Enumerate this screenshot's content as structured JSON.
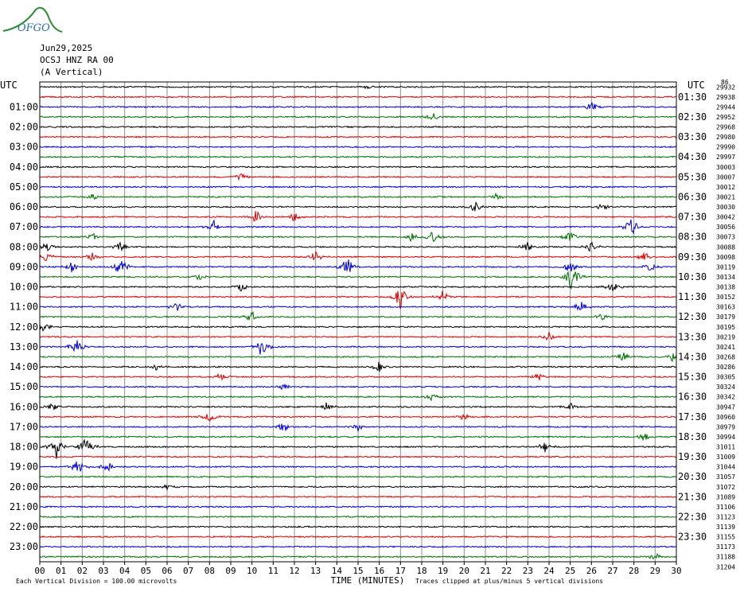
{
  "logo": {
    "text": "OFGO"
  },
  "header": {
    "date": "Jun29,2025",
    "station": "OCSJ HNZ RA 00",
    "component": "(A Vertical)"
  },
  "colors": {
    "trace_cycle": [
      "#000000",
      "#e00000",
      "#0000e0",
      "#007000"
    ],
    "grid": "#909090"
  },
  "chart_data": {
    "type": "line",
    "title": "",
    "xlabel": "TIME (MINUTES)",
    "ylabel": "",
    "x_ticks": [
      "00",
      "01",
      "02",
      "03",
      "04",
      "05",
      "06",
      "07",
      "08",
      "09",
      "10",
      "11",
      "12",
      "13",
      "14",
      "15",
      "16",
      "17",
      "18",
      "19",
      "20",
      "21",
      "22",
      "23",
      "24",
      "25",
      "26",
      "27",
      "28",
      "29",
      "30"
    ],
    "xlim": [
      0,
      30
    ],
    "left_axis_title": "UTC",
    "right_axis_title": "UTC",
    "left_hour_labels": [
      "01:00",
      "02:00",
      "03:00",
      "04:00",
      "05:00",
      "06:00",
      "07:00",
      "08:00",
      "09:00",
      "10:00",
      "11:00",
      "12:00",
      "13:00",
      "14:00",
      "15:00",
      "16:00",
      "17:00",
      "18:00",
      "19:00",
      "20:00",
      "21:00",
      "22:00",
      "23:00"
    ],
    "right_hour_labels": [
      "01:30",
      "02:30",
      "03:30",
      "04:30",
      "05:30",
      "06:30",
      "07:30",
      "08:30",
      "09:30",
      "10:30",
      "11:30",
      "12:30",
      "13:30",
      "14:30",
      "15:30",
      "16:30",
      "17:30",
      "18:30",
      "19:30",
      "20:30",
      "21:30",
      "22:30",
      "23:30"
    ],
    "trace_counts_top_label": "86",
    "trace_counts": [
      "29932",
      "29938",
      "29944",
      "29952",
      "29968",
      "29980",
      "29990",
      "29997",
      "30003",
      "30007",
      "30012",
      "30021",
      "30030",
      "30042",
      "30056",
      "30073",
      "30088",
      "30098",
      "30119",
      "30134",
      "30138",
      "30152",
      "30163",
      "30179",
      "30195",
      "30219",
      "30241",
      "30268",
      "30286",
      "30305",
      "30324",
      "30342",
      "30947",
      "30960",
      "30979",
      "30994",
      "31011",
      "31009",
      "31044",
      "31057",
      "31072",
      "31089",
      "31106",
      "31123",
      "31139",
      "31155",
      "31173",
      "31188",
      "31204"
    ],
    "events": [
      {
        "row": 0,
        "minute": 15.5,
        "amp": 4
      },
      {
        "row": 2,
        "minute": 26.0,
        "amp": 6
      },
      {
        "row": 3,
        "minute": 18.5,
        "amp": 6
      },
      {
        "row": 9,
        "minute": 9.5,
        "amp": 6
      },
      {
        "row": 11,
        "minute": 2.5,
        "amp": 6
      },
      {
        "row": 11,
        "minute": 21.5,
        "amp": 5
      },
      {
        "row": 12,
        "minute": 20.5,
        "amp": 8
      },
      {
        "row": 12,
        "minute": 26.5,
        "amp": 5
      },
      {
        "row": 13,
        "minute": 10.2,
        "amp": 10
      },
      {
        "row": 13,
        "minute": 12.0,
        "amp": 6
      },
      {
        "row": 14,
        "minute": 8.2,
        "amp": 8
      },
      {
        "row": 14,
        "minute": 27.9,
        "amp": 14
      },
      {
        "row": 15,
        "minute": 2.5,
        "amp": 6
      },
      {
        "row": 15,
        "minute": 17.5,
        "amp": 6
      },
      {
        "row": 15,
        "minute": 18.5,
        "amp": 8
      },
      {
        "row": 15,
        "minute": 25.0,
        "amp": 10
      },
      {
        "row": 16,
        "minute": 0.3,
        "amp": 7
      },
      {
        "row": 16,
        "minute": 3.8,
        "amp": 6
      },
      {
        "row": 16,
        "minute": 23.0,
        "amp": 8
      },
      {
        "row": 16,
        "minute": 26.0,
        "amp": 8
      },
      {
        "row": 17,
        "minute": 0.3,
        "amp": 8
      },
      {
        "row": 17,
        "minute": 2.5,
        "amp": 6
      },
      {
        "row": 17,
        "minute": 13.0,
        "amp": 9
      },
      {
        "row": 17,
        "minute": 28.5,
        "amp": 7
      },
      {
        "row": 18,
        "minute": 3.8,
        "amp": 16
      },
      {
        "row": 18,
        "minute": 14.5,
        "amp": 14
      },
      {
        "row": 18,
        "minute": 1.5,
        "amp": 8
      },
      {
        "row": 18,
        "minute": 25.0,
        "amp": 10
      },
      {
        "row": 18,
        "minute": 28.8,
        "amp": 7
      },
      {
        "row": 19,
        "minute": 7.5,
        "amp": 6
      },
      {
        "row": 19,
        "minute": 25.1,
        "amp": 20
      },
      {
        "row": 20,
        "minute": 9.5,
        "amp": 6
      },
      {
        "row": 20,
        "minute": 27.0,
        "amp": 8
      },
      {
        "row": 21,
        "minute": 17.0,
        "amp": 16
      },
      {
        "row": 21,
        "minute": 19.0,
        "amp": 8
      },
      {
        "row": 22,
        "minute": 6.5,
        "amp": 8
      },
      {
        "row": 22,
        "minute": 25.5,
        "amp": 8
      },
      {
        "row": 23,
        "minute": 10.0,
        "amp": 8
      },
      {
        "row": 23,
        "minute": 26.5,
        "amp": 6
      },
      {
        "row": 24,
        "minute": 0.2,
        "amp": 8
      },
      {
        "row": 25,
        "minute": 24.0,
        "amp": 6
      },
      {
        "row": 26,
        "minute": 1.7,
        "amp": 12
      },
      {
        "row": 26,
        "minute": 10.5,
        "amp": 16
      },
      {
        "row": 27,
        "minute": 27.5,
        "amp": 8
      },
      {
        "row": 27,
        "minute": 29.8,
        "amp": 6
      },
      {
        "row": 28,
        "minute": 5.5,
        "amp": 5
      },
      {
        "row": 28,
        "minute": 16.0,
        "amp": 8
      },
      {
        "row": 29,
        "minute": 23.5,
        "amp": 6
      },
      {
        "row": 29,
        "minute": 8.5,
        "amp": 6
      },
      {
        "row": 30,
        "minute": 11.5,
        "amp": 5
      },
      {
        "row": 31,
        "minute": 18.5,
        "amp": 5
      },
      {
        "row": 32,
        "minute": 0.6,
        "amp": 6
      },
      {
        "row": 32,
        "minute": 13.5,
        "amp": 6
      },
      {
        "row": 32,
        "minute": 25.0,
        "amp": 5
      },
      {
        "row": 33,
        "minute": 8.0,
        "amp": 8
      },
      {
        "row": 33,
        "minute": 20.0,
        "amp": 6
      },
      {
        "row": 34,
        "minute": 11.5,
        "amp": 7
      },
      {
        "row": 34,
        "minute": 15.0,
        "amp": 5
      },
      {
        "row": 35,
        "minute": 28.5,
        "amp": 6
      },
      {
        "row": 36,
        "minute": 0.8,
        "amp": 16
      },
      {
        "row": 36,
        "minute": 2.2,
        "amp": 16
      },
      {
        "row": 36,
        "minute": 23.8,
        "amp": 8
      },
      {
        "row": 38,
        "minute": 1.8,
        "amp": 10
      },
      {
        "row": 38,
        "minute": 3.2,
        "amp": 8
      },
      {
        "row": 40,
        "minute": 6.0,
        "amp": 5
      },
      {
        "row": 47,
        "minute": 29.0,
        "amp": 5
      }
    ]
  },
  "footer": {
    "scale_note": "Each Vertical Division =  100.00 microvolts",
    "clip_note": "Traces clipped at plus/minus 5 vertical divisions"
  }
}
